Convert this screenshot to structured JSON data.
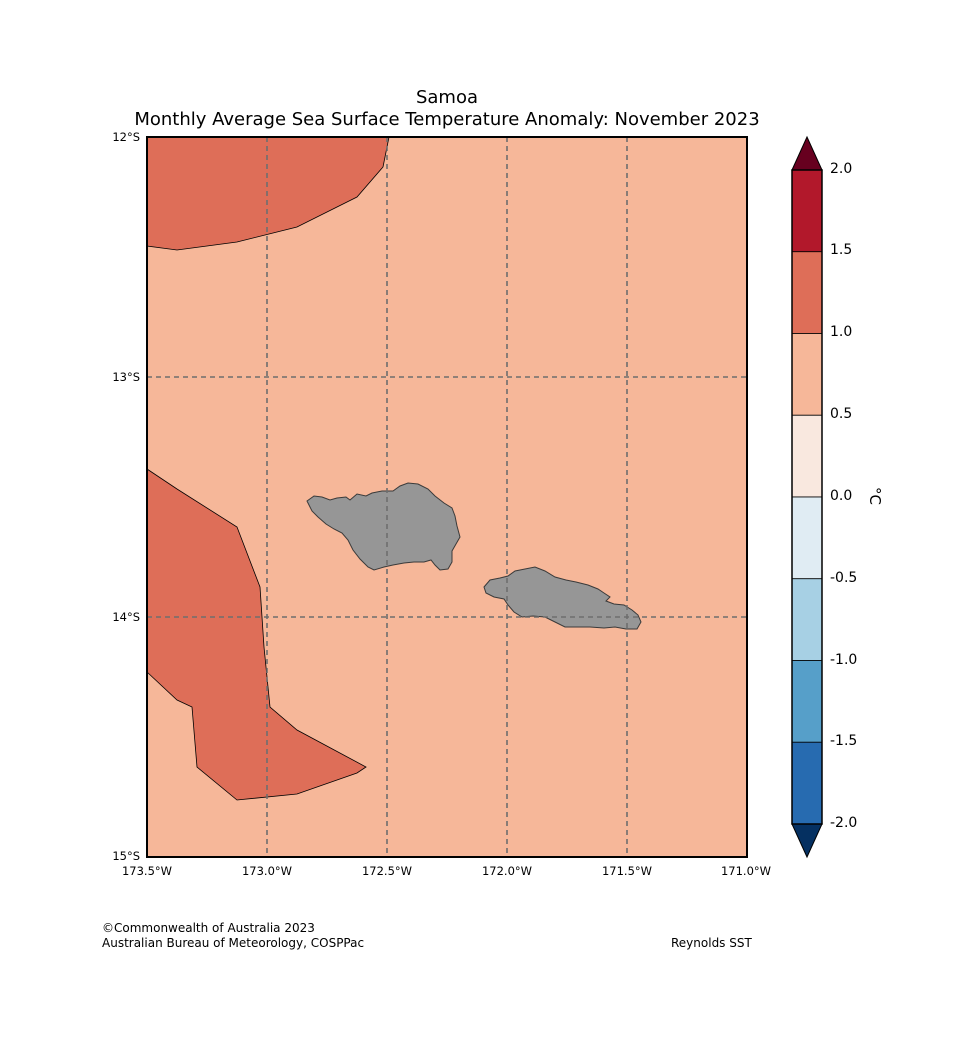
{
  "title": {
    "line1": "Samoa",
    "line2": "Monthly Average Sea Surface Temperature Anomaly: November 2023"
  },
  "axes": {
    "lat_labels": [
      "12°S",
      "13°S",
      "14°S",
      "15°S"
    ],
    "lon_labels": [
      "173.5°W",
      "173.0°W",
      "172.5°W",
      "172.0°W",
      "171.5°W",
      "171.0°W"
    ],
    "extent": {
      "lon_min": -173.5,
      "lon_max": -171.0,
      "lat_min": -15.0,
      "lat_max": -12.0
    }
  },
  "chart_data": {
    "type": "heatmap",
    "title": "Monthly Average Sea Surface Temperature Anomaly: November 2023",
    "region": "Samoa",
    "background_anomaly_band": [
      0.5,
      1.0
    ],
    "warm_patch_anomaly_band": [
      1.0,
      1.5
    ],
    "colorbar": {
      "unit": "°C",
      "ticks": [
        "2.0",
        "1.5",
        "1.0",
        "0.5",
        "0.0",
        "-0.5",
        "-1.0",
        "-1.5",
        "-2.0"
      ],
      "bins": [
        {
          "from": 1.5,
          "to": 2.0,
          "color": "#b2182b"
        },
        {
          "from": 1.0,
          "to": 1.5,
          "color": "#de6e58"
        },
        {
          "from": 0.5,
          "to": 1.0,
          "color": "#f6b799"
        },
        {
          "from": 0.0,
          "to": 0.5,
          "color": "#f9e8df"
        },
        {
          "from": -0.5,
          "to": 0.0,
          "color": "#e0ecf3"
        },
        {
          "from": -1.0,
          "to": -0.5,
          "color": "#a7d0e4"
        },
        {
          "from": -1.5,
          "to": -1.0,
          "color": "#569fc9"
        },
        {
          "from": -2.0,
          "to": -1.5,
          "color": "#276bb0"
        }
      ],
      "over_color": "#67001f",
      "under_color": "#053061"
    }
  },
  "colors": {
    "ocean": "#f6b799",
    "warm_patch": "#de6e58",
    "land": "#969696",
    "grid": "#6e6e6e"
  },
  "footer": {
    "copyright": "©Commonwealth of Australia 2023",
    "agency": "Australian Bureau of Meteorology, COSPPac",
    "source": "Reynolds SST"
  }
}
